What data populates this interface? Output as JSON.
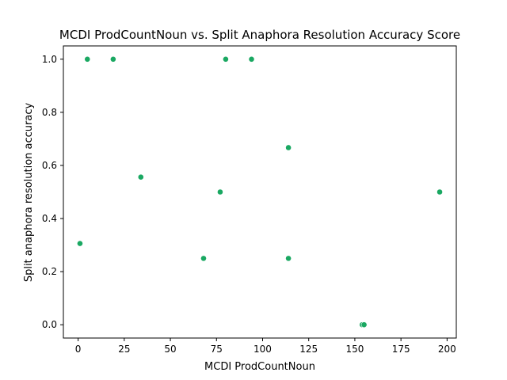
{
  "chart_data": {
    "type": "scatter",
    "title": "MCDI ProdCountNoun vs. Split Anaphora Resolution Accuracy Score",
    "xlabel": "MCDI ProdCountNoun",
    "ylabel": "Split anaphora resolution accuracy",
    "xlim": [
      -8,
      205
    ],
    "ylim": [
      -0.05,
      1.05
    ],
    "xticks": [
      0,
      25,
      50,
      75,
      100,
      125,
      150,
      175,
      200
    ],
    "yticks": [
      0.0,
      0.2,
      0.4,
      0.6,
      0.8,
      1.0
    ],
    "grid": false,
    "marker_color": "#1aa862",
    "points": [
      {
        "x": 1,
        "y": 0.306
      },
      {
        "x": 5,
        "y": 1.0
      },
      {
        "x": 19,
        "y": 1.0
      },
      {
        "x": 34,
        "y": 0.556
      },
      {
        "x": 68,
        "y": 0.25
      },
      {
        "x": 77,
        "y": 0.5
      },
      {
        "x": 80,
        "y": 1.0
      },
      {
        "x": 94,
        "y": 1.0
      },
      {
        "x": 114,
        "y": 0.667
      },
      {
        "x": 114,
        "y": 0.25
      },
      {
        "x": 154,
        "y": 0.0
      },
      {
        "x": 155,
        "y": 0.0
      },
      {
        "x": 196,
        "y": 0.5
      }
    ]
  }
}
